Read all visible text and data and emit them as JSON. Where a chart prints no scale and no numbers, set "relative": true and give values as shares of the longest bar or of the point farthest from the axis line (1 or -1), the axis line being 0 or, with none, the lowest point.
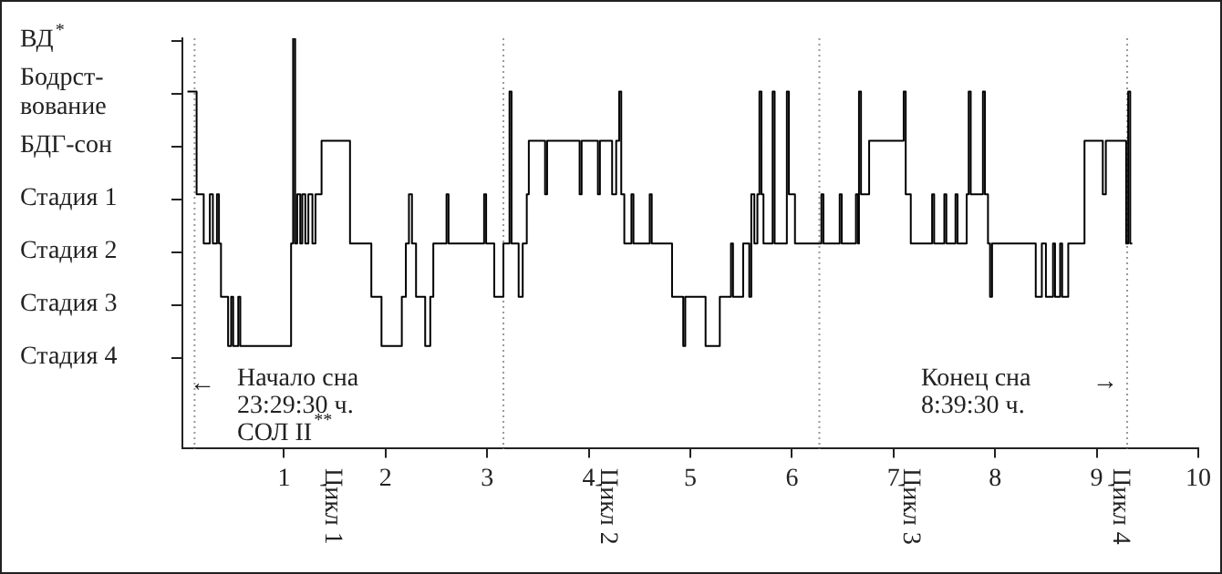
{
  "chart_data": {
    "type": "step",
    "xlim": [
      0,
      10
    ],
    "xticks": [
      1,
      2,
      3,
      4,
      5,
      6,
      7,
      8,
      9,
      10
    ],
    "relative": true,
    "grid": false,
    "legend": false,
    "series": [
      {
        "color": "#000000",
        "x": [
          0.05,
          0.14,
          0.21,
          0.27,
          0.3,
          0.34,
          0.36,
          0.38,
          0.45,
          0.48,
          0.5,
          0.55,
          0.57,
          1.07,
          1.09,
          1.11,
          1.13,
          1.16,
          1.18,
          1.21,
          1.24,
          1.28,
          1.31,
          1.37,
          1.65,
          1.86,
          1.96,
          2.16,
          2.2,
          2.23,
          2.26,
          2.3,
          2.39,
          2.44,
          2.47,
          2.6,
          2.62,
          2.97,
          2.99,
          3.07,
          3.16,
          3.22,
          3.24,
          3.31,
          3.35,
          3.39,
          3.41,
          3.57,
          3.59,
          3.91,
          3.93,
          4.09,
          4.11,
          4.23,
          4.27,
          4.3,
          4.32,
          4.35,
          4.42,
          4.44,
          4.6,
          4.62,
          4.82,
          4.93,
          4.95,
          5.15,
          5.29,
          5.4,
          5.42,
          5.52,
          5.58,
          5.6,
          5.63,
          5.66,
          5.68,
          5.7,
          5.72,
          5.81,
          5.83,
          5.95,
          5.97,
          6.03,
          6.29,
          6.31,
          6.47,
          6.49,
          6.63,
          6.65,
          6.66,
          6.68,
          6.76,
          7.1,
          7.12,
          7.17,
          7.38,
          7.4,
          7.5,
          7.52,
          7.61,
          7.63,
          7.72,
          7.74,
          7.76,
          7.88,
          7.9,
          7.93,
          7.95,
          7.97,
          8.4,
          8.46,
          8.5,
          8.57,
          8.59,
          8.64,
          8.66,
          8.72,
          8.88,
          9.06,
          9.09,
          9.29,
          9.31,
          9.33,
          9.35
        ],
        "values": [
          0.87,
          0.62,
          0.5,
          0.62,
          0.5,
          0.62,
          0.5,
          0.37,
          0.25,
          0.37,
          0.25,
          0.37,
          0.25,
          0.5,
          1,
          0.5,
          0.62,
          0.5,
          0.62,
          0.5,
          0.62,
          0.5,
          0.62,
          0.75,
          0.5,
          0.37,
          0.25,
          0.37,
          0.5,
          0.62,
          0.5,
          0.37,
          0.25,
          0.37,
          0.5,
          0.62,
          0.5,
          0.62,
          0.5,
          0.37,
          0.5,
          0.87,
          0.5,
          0.37,
          0.5,
          0.62,
          0.75,
          0.62,
          0.75,
          0.62,
          0.75,
          0.62,
          0.75,
          0.62,
          0.75,
          0.87,
          0.62,
          0.5,
          0.62,
          0.5,
          0.62,
          0.5,
          0.37,
          0.25,
          0.37,
          0.25,
          0.37,
          0.5,
          0.37,
          0.5,
          0.37,
          0.62,
          0.5,
          0.62,
          0.87,
          0.62,
          0.5,
          0.87,
          0.5,
          0.87,
          0.62,
          0.5,
          0.62,
          0.5,
          0.62,
          0.5,
          0.62,
          0.5,
          0.87,
          0.62,
          0.75,
          0.87,
          0.62,
          0.5,
          0.62,
          0.5,
          0.62,
          0.5,
          0.62,
          0.5,
          0.62,
          0.87,
          0.62,
          0.87,
          0.62,
          0.5,
          0.37,
          0.5,
          0.37,
          0.5,
          0.37,
          0.5,
          0.37,
          0.5,
          0.37,
          0.5,
          0.75,
          0.62,
          0.75,
          0.5,
          0.87,
          0.5,
          0.5
        ]
      }
    ],
    "ref_lines": [
      {
        "axis": "x",
        "value": 0.12,
        "color": "#999999",
        "line_style": "dotted"
      },
      {
        "axis": "x",
        "value": 3.16,
        "color": "#999999",
        "line_style": "dotted"
      },
      {
        "axis": "x",
        "value": 6.27,
        "color": "#999999",
        "line_style": "dotted"
      },
      {
        "axis": "x",
        "value": 9.3,
        "color": "#999999",
        "line_style": "dotted"
      }
    ],
    "annotations": [
      "ВД$^{*}$",
      "Бодрст-\nвование",
      "БДГ-сон",
      "Стадия 1",
      "Стадия 2",
      "Стадия 3",
      "Стадия 4",
      "←",
      "Начало сна\n23:29:30 ч.\nСОЛ II$^{**}$",
      "Конец сна\n8:39:30 ч.",
      "→",
      "Цикл 1",
      "Цикл 2",
      "Цикл 3",
      "Цикл 4"
    ]
  }
}
